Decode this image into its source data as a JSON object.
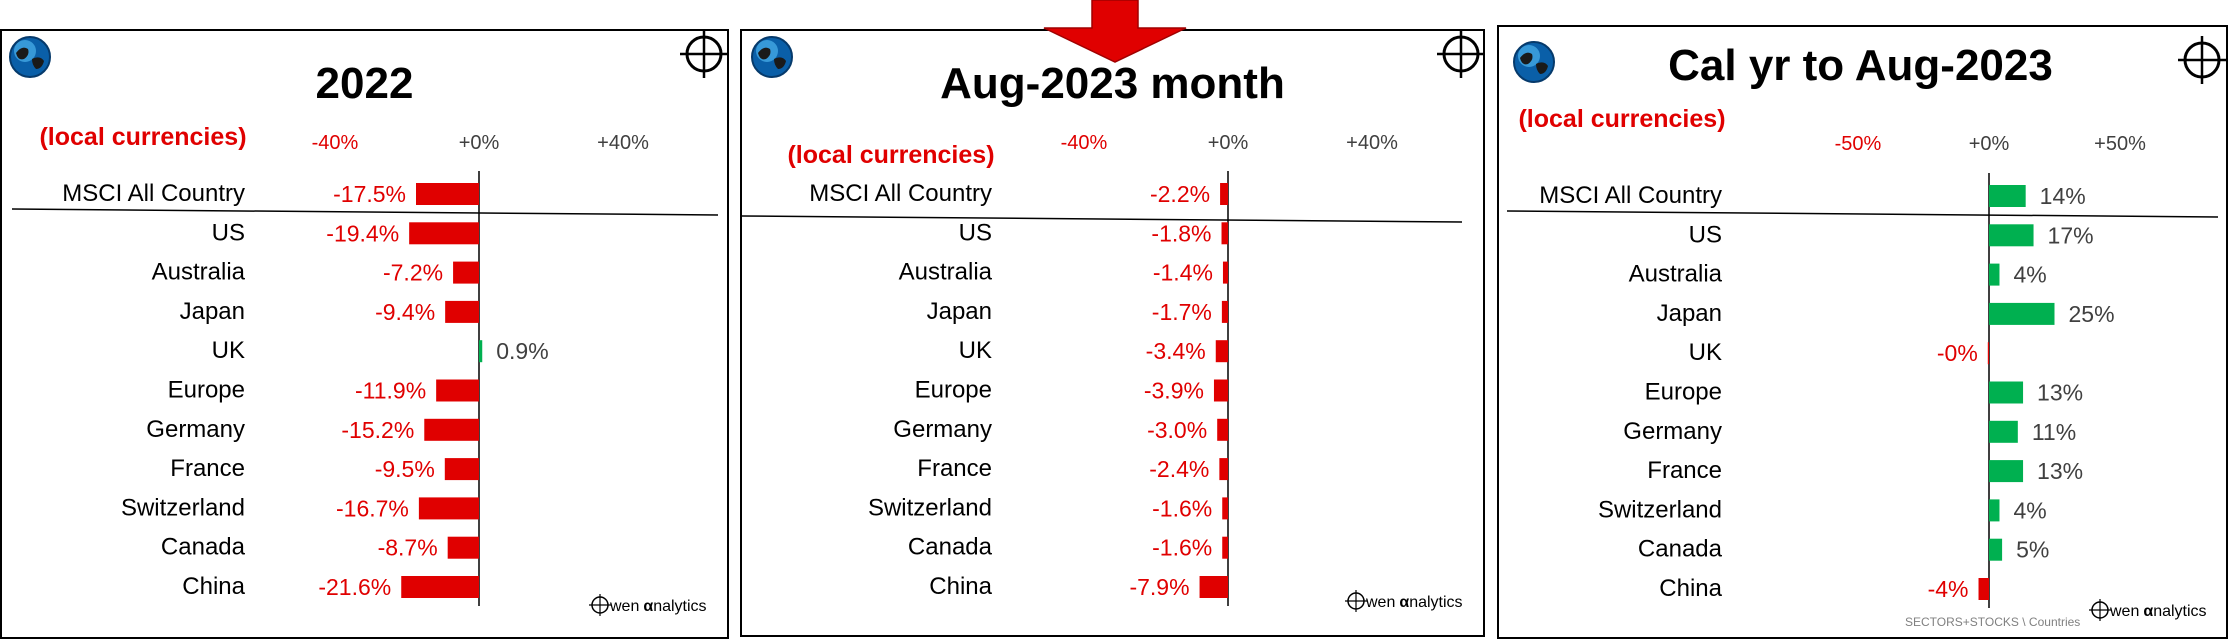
{
  "colors": {
    "negative": "#e00000",
    "positive": "#00b050",
    "text": "#000000",
    "tick_positive": "#404040"
  },
  "panels": [
    {
      "title": "2022",
      "subtitle": "(local currencies)",
      "footer": "wen analytics",
      "footer_alpha": "α",
      "chart_data": {
        "type": "bar",
        "orientation": "horizontal",
        "title": "2022",
        "xlim": [
          -80,
          80
        ],
        "ticks": [
          {
            "value": -40,
            "label": "-40%"
          },
          {
            "value": 0,
            "label": "+0%"
          },
          {
            "value": 40,
            "label": "+40%"
          }
        ],
        "categories": [
          "MSCI All Country",
          "US",
          "Australia",
          "Japan",
          "UK",
          "Europe",
          "Germany",
          "France",
          "Switzerland",
          "Canada",
          "China"
        ],
        "values": [
          -17.5,
          -19.4,
          -7.2,
          -9.4,
          0.9,
          -11.9,
          -15.2,
          -9.5,
          -16.7,
          -8.7,
          -21.6
        ],
        "labels": [
          "-17.5%",
          "-19.4%",
          "-7.2%",
          "-9.4%",
          "0.9%",
          "-11.9%",
          "-15.2%",
          "-9.5%",
          "-16.7%",
          "-8.7%",
          "-21.6%"
        ]
      }
    },
    {
      "title": "Aug-2023 month",
      "subtitle": "(local currencies)",
      "footer": "wen analytics",
      "footer_alpha": "α",
      "chart_data": {
        "type": "bar",
        "orientation": "horizontal",
        "title": "Aug-2023 month",
        "xlim": [
          -80,
          80
        ],
        "ticks": [
          {
            "value": -40,
            "label": "-40%"
          },
          {
            "value": 0,
            "label": "+0%"
          },
          {
            "value": 40,
            "label": "+40%"
          }
        ],
        "categories": [
          "MSCI All Country",
          "US",
          "Australia",
          "Japan",
          "UK",
          "Europe",
          "Germany",
          "France",
          "Switzerland",
          "Canada",
          "China"
        ],
        "values": [
          -2.2,
          -1.8,
          -1.4,
          -1.7,
          -3.4,
          -3.9,
          -3.0,
          -2.4,
          -1.6,
          -1.6,
          -7.9
        ],
        "labels": [
          "-2.2%",
          "-1.8%",
          "-1.4%",
          "-1.7%",
          "-3.4%",
          "-3.9%",
          "-3.0%",
          "-2.4%",
          "-1.6%",
          "-1.6%",
          "-7.9%"
        ]
      }
    },
    {
      "title": "Cal yr to Aug-2023",
      "subtitle": "(local currencies)",
      "footer": "wen analytics",
      "footer_alpha": "α",
      "source": "SECTORS+STOCKS \\ Countries",
      "chart_data": {
        "type": "bar",
        "orientation": "horizontal",
        "title": "Cal yr to Aug-2023",
        "xlim": [
          -80,
          80
        ],
        "ticks": [
          {
            "value": -50,
            "label": "-50%"
          },
          {
            "value": 0,
            "label": "+0%"
          },
          {
            "value": 50,
            "label": "+50%"
          }
        ],
        "categories": [
          "MSCI All Country",
          "US",
          "Australia",
          "Japan",
          "UK",
          "Europe",
          "Germany",
          "France",
          "Switzerland",
          "Canada",
          "China"
        ],
        "values": [
          14,
          17,
          4,
          25,
          -0.1,
          13,
          11,
          13,
          4,
          5,
          -4
        ],
        "labels": [
          "14%",
          "17%",
          "4%",
          "25%",
          "-0%",
          "13%",
          "11%",
          "13%",
          "4%",
          "5%",
          "-4%"
        ]
      }
    }
  ]
}
